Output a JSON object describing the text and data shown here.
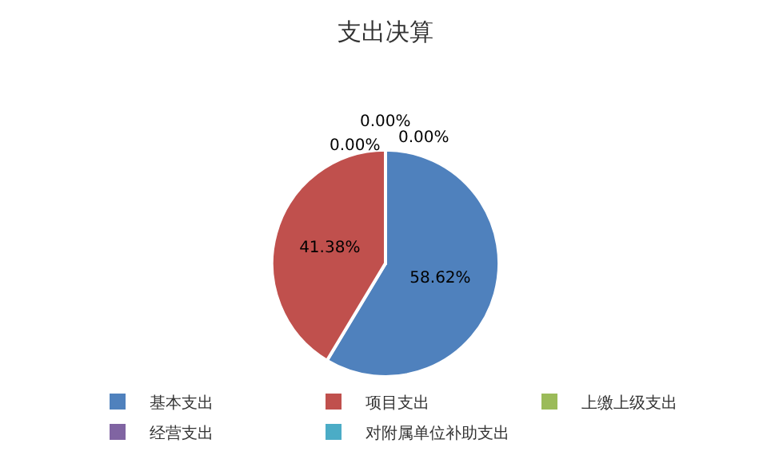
{
  "chart_data": {
    "type": "pie",
    "title": "支出决算",
    "categories": [
      "基本支出",
      "项目支出",
      "上缴上级支出",
      "经营支出",
      "对附属单位补助支出"
    ],
    "values": [
      58.62,
      41.38,
      0,
      0,
      0
    ],
    "colors": [
      "#4f81bd",
      "#c0504d",
      "#9bbb59",
      "#8064a2",
      "#4bacc6"
    ],
    "value_labels": [
      "58.62%",
      "41.38%",
      "0.00%",
      "0.00%",
      "0.00%"
    ],
    "legend": "bottom"
  }
}
